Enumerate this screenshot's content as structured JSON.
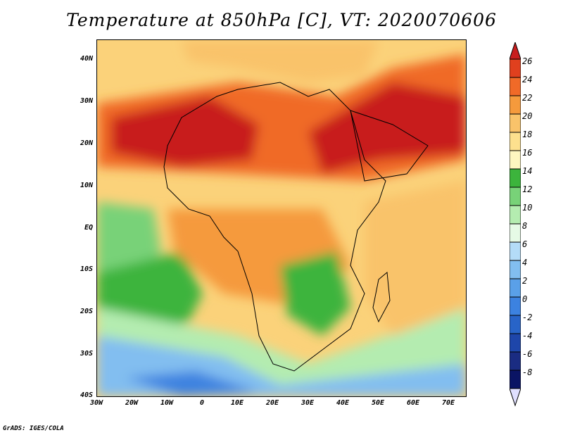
{
  "title": "Temperature at 850hPa [C], VT: 2020070606",
  "credit": "GrADS: IGES/COLA",
  "y_ticks": [
    "40N",
    "30N",
    "20N",
    "10N",
    "EQ",
    "10S",
    "20S",
    "30S",
    "40S"
  ],
  "x_ticks": [
    "30W",
    "20W",
    "10W",
    "0",
    "10E",
    "20E",
    "30E",
    "40E",
    "50E",
    "60E",
    "70E"
  ],
  "colorbar": {
    "labels": [
      "26",
      "24",
      "22",
      "20",
      "18",
      "16",
      "14",
      "12",
      "10",
      "8",
      "6",
      "4",
      "2",
      "0",
      "-2",
      "-4",
      "-6",
      "-8"
    ],
    "colors": [
      "#c81e1e",
      "#e0401e",
      "#f06a28",
      "#f59a3c",
      "#f9c36a",
      "#fde08e",
      "#fef6c0",
      "#3cb43c",
      "#78d278",
      "#b4ecb0",
      "#e6fae6",
      "#b4dcf8",
      "#82bef0",
      "#5aa0e8",
      "#3c82e0",
      "#2864c8",
      "#1e46aa",
      "#1a2c82",
      "#0a1464",
      "#e0e0ff"
    ]
  }
}
